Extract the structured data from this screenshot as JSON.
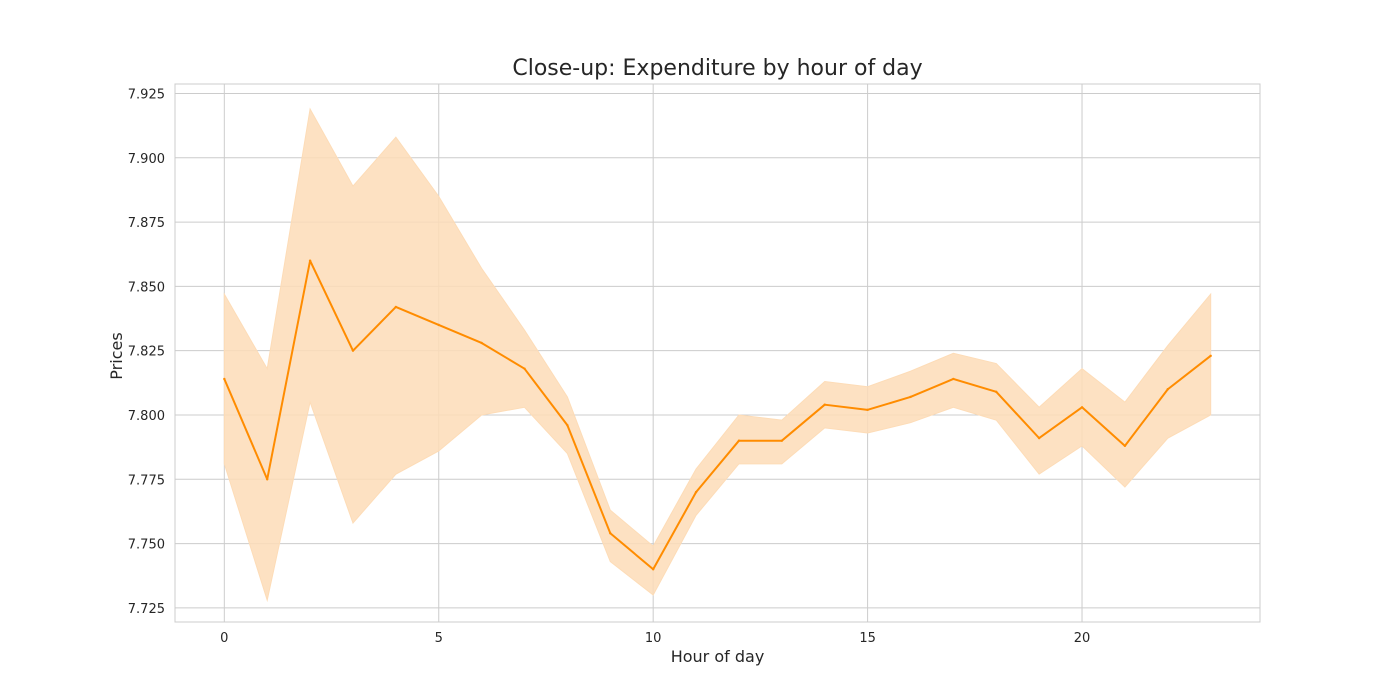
{
  "chart_data": {
    "type": "line",
    "title": "Close-up: Expenditure by hour of day",
    "xlabel": "Hour of day",
    "ylabel": "Prices",
    "xlim": [
      -1.15,
      24.15
    ],
    "ylim": [
      7.7195,
      7.9287
    ],
    "x_ticks": [
      0,
      5,
      10,
      15,
      20
    ],
    "y_ticks": [
      7.725,
      7.75,
      7.775,
      7.8,
      7.825,
      7.85,
      7.875,
      7.9,
      7.925
    ],
    "grid": true,
    "colors": {
      "line": "#ff8c00",
      "band": "#fddcb7",
      "grid": "#cccccc"
    },
    "series": [
      {
        "x": [
          0,
          1,
          2,
          3,
          4,
          5,
          6,
          7,
          8,
          9,
          10,
          11,
          12,
          13,
          14,
          15,
          16,
          17,
          18,
          19,
          20,
          21,
          22,
          23
        ],
        "values": [
          7.814,
          7.775,
          7.86,
          7.825,
          7.842,
          7.835,
          7.828,
          7.818,
          7.796,
          7.754,
          7.74,
          7.77,
          7.79,
          7.79,
          7.804,
          7.802,
          7.807,
          7.814,
          7.809,
          7.791,
          7.803,
          7.788,
          7.81,
          7.823
        ],
        "ci_low": [
          7.781,
          7.728,
          7.805,
          7.758,
          7.777,
          7.786,
          7.8,
          7.803,
          7.785,
          7.743,
          7.73,
          7.761,
          7.781,
          7.781,
          7.795,
          7.793,
          7.797,
          7.803,
          7.798,
          7.777,
          7.788,
          7.772,
          7.791,
          7.8
        ],
        "ci_high": [
          7.847,
          7.818,
          7.919,
          7.889,
          7.908,
          7.885,
          7.857,
          7.833,
          7.807,
          7.763,
          7.749,
          7.779,
          7.8,
          7.798,
          7.813,
          7.811,
          7.817,
          7.824,
          7.82,
          7.803,
          7.818,
          7.805,
          7.827,
          7.847
        ]
      }
    ]
  }
}
